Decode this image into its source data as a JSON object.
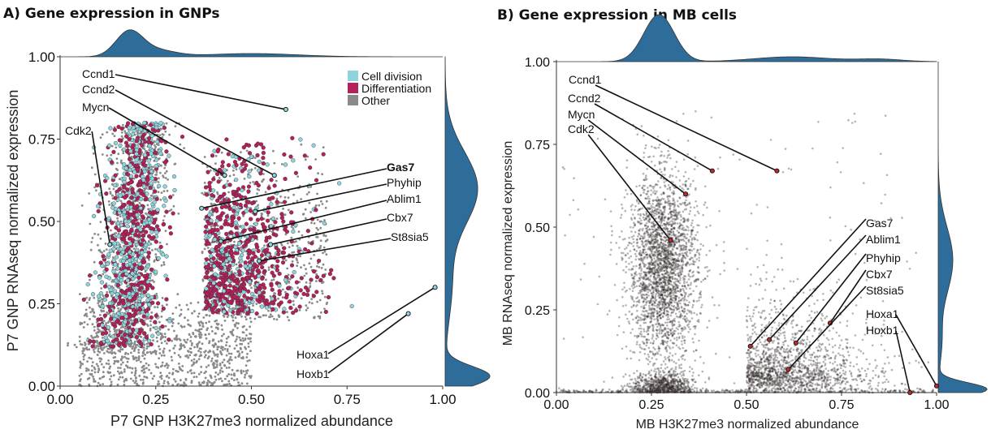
{
  "chart_data": [
    {
      "type": "scatter",
      "title": "A) Gene expression in GNPs",
      "xlabel": "P7 GNP H3K27me3 normalized abundance",
      "ylabel": "P7 GNP RNAseq normalized expression",
      "xlim": [
        0,
        1
      ],
      "ylim": [
        0,
        1
      ],
      "xticks": [
        "0.00",
        "0.25",
        "0.50",
        "0.75",
        "1.00"
      ],
      "yticks": [
        "0.00",
        "0.25",
        "0.50",
        "0.75",
        "1.00"
      ],
      "legend": {
        "position": "top-right",
        "entries": [
          {
            "label": "Cell division",
            "color": "#8fd3dc"
          },
          {
            "label": "Differentiation",
            "color": "#b3205a"
          },
          {
            "label": "Other",
            "color": "#8a8a8a"
          }
        ]
      },
      "marginal_densities": true,
      "labeled_genes": [
        {
          "name": "Ccnd1",
          "x": 0.59,
          "y": 0.84,
          "highlight": true
        },
        {
          "name": "Ccnd2",
          "x": 0.56,
          "y": 0.64
        },
        {
          "name": "Mycn",
          "x": 0.43,
          "y": 0.64
        },
        {
          "name": "Cdk2",
          "x": 0.13,
          "y": 0.43
        },
        {
          "name": "Gas7",
          "x": 0.37,
          "y": 0.54,
          "bold": true
        },
        {
          "name": "Phyhip",
          "x": 0.51,
          "y": 0.53
        },
        {
          "name": "Ablim1",
          "x": 0.42,
          "y": 0.44
        },
        {
          "name": "Cbx7",
          "x": 0.55,
          "y": 0.43
        },
        {
          "name": "St8sia5",
          "x": 0.52,
          "y": 0.38
        },
        {
          "name": "Hoxa1",
          "x": 0.98,
          "y": 0.3
        },
        {
          "name": "Hoxb1",
          "x": 0.91,
          "y": 0.22
        }
      ]
    },
    {
      "type": "scatter",
      "title": "B) Gene expression in MB cells",
      "xlabel": "MB H3K27me3 normalized abundance",
      "ylabel": "MB RNAseq normalized expression",
      "xlim": [
        0,
        1
      ],
      "ylim": [
        0,
        1
      ],
      "xticks": [
        "0.00",
        "0.25",
        "0.50",
        "0.75",
        "1.00"
      ],
      "yticks": [
        "0.00",
        "0.25",
        "0.50",
        "0.75",
        "1.00"
      ],
      "marginal_densities": true,
      "labeled_genes": [
        {
          "name": "Ccnd1",
          "x": 0.58,
          "y": 0.67,
          "highlight": true
        },
        {
          "name": "Ccnd2",
          "x": 0.41,
          "y": 0.67
        },
        {
          "name": "Mycn",
          "x": 0.34,
          "y": 0.6
        },
        {
          "name": "Cdk2",
          "x": 0.3,
          "y": 0.46
        },
        {
          "name": "Gas7",
          "x": 0.51,
          "y": 0.14
        },
        {
          "name": "Ablim1",
          "x": 0.56,
          "y": 0.16
        },
        {
          "name": "Phyhip",
          "x": 0.63,
          "y": 0.15
        },
        {
          "name": "Cbx7",
          "x": 0.72,
          "y": 0.21
        },
        {
          "name": "St8sia5",
          "x": 0.61,
          "y": 0.07
        },
        {
          "name": "Hoxa1",
          "x": 1.0,
          "y": 0.02
        },
        {
          "name": "Hoxb1",
          "x": 0.93,
          "y": 0.0
        }
      ]
    }
  ],
  "colors": {
    "density": "#2e6d99",
    "highlight_label": "#b0182f",
    "gene_point_b": "#c0282a"
  }
}
